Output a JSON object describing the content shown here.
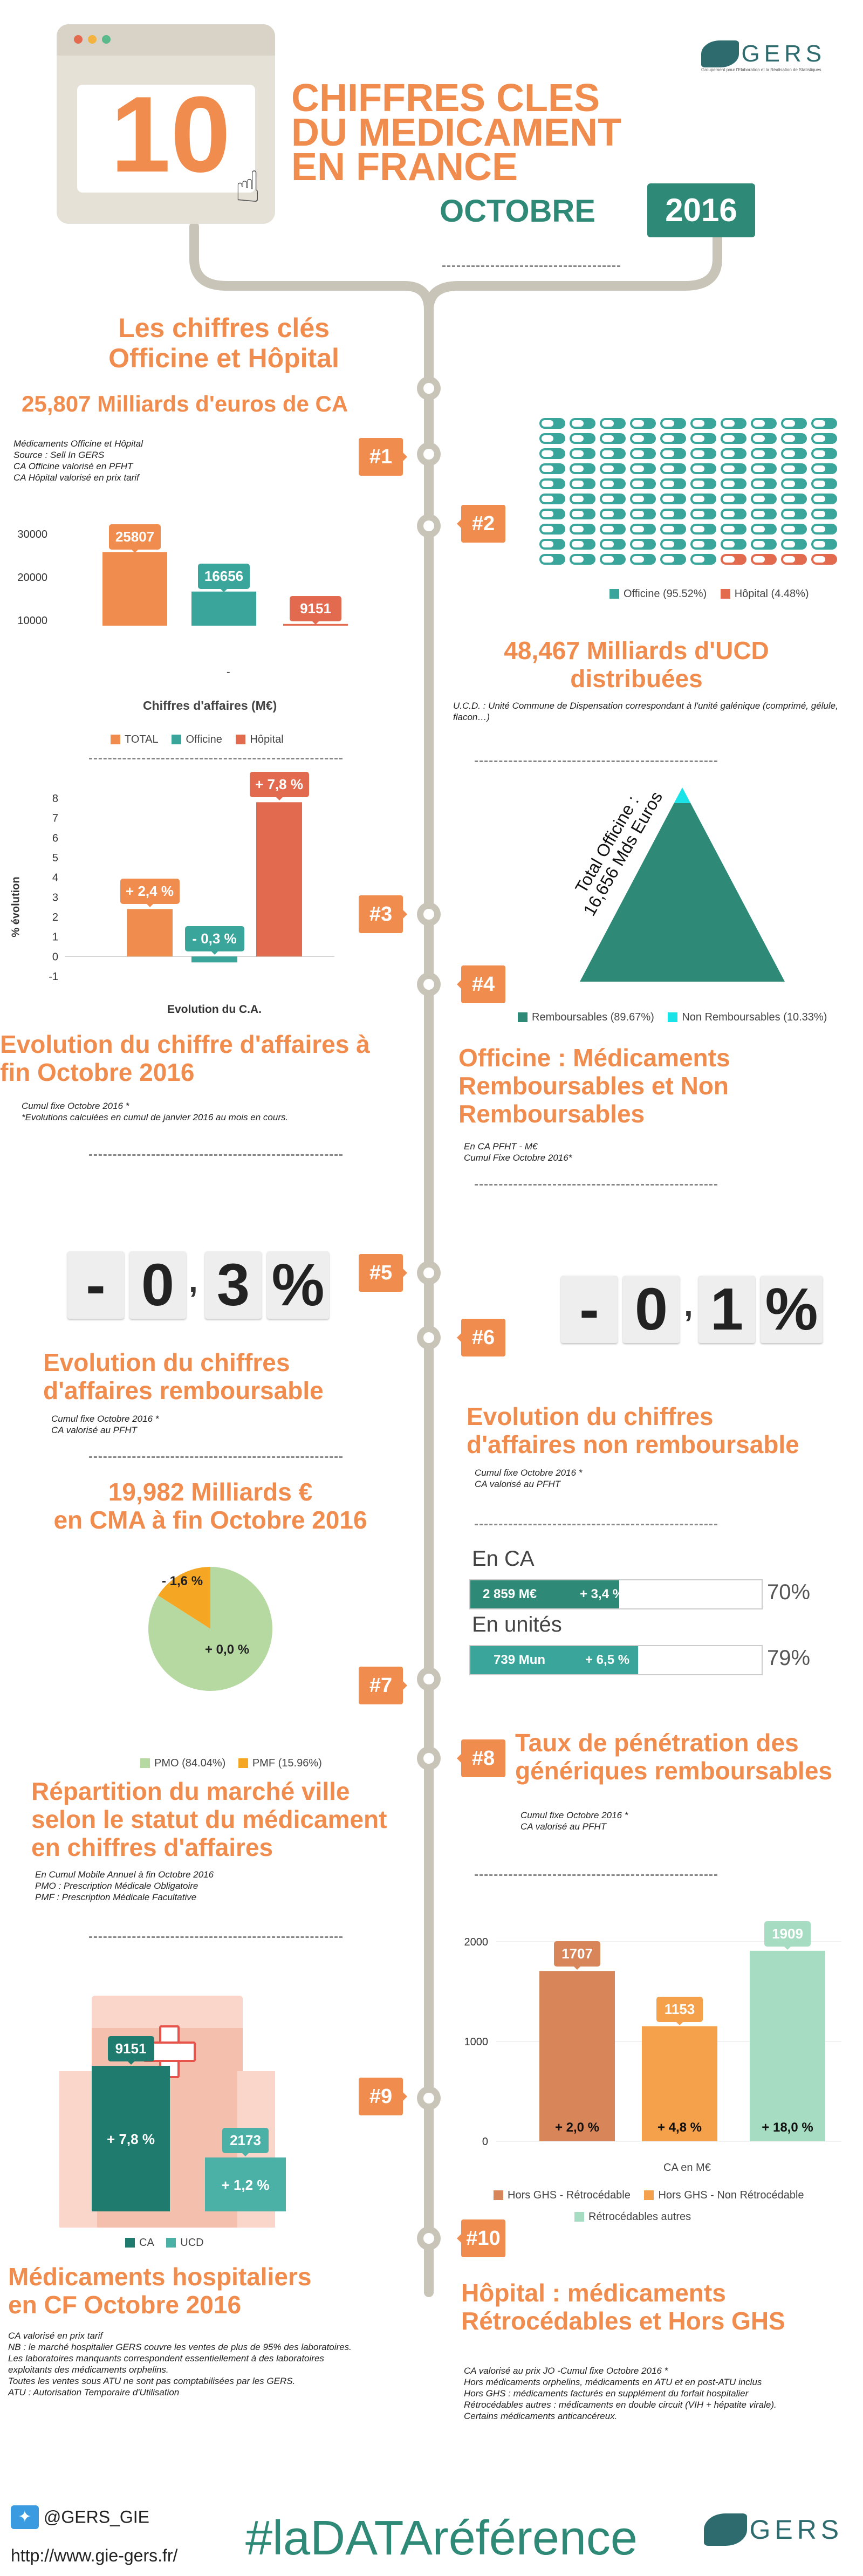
{
  "header": {
    "big_number": "10",
    "title_lines": [
      "CHIFFRES CLES",
      "DU MEDICAMENT",
      "EN FRANCE"
    ],
    "month": "OCTOBRE",
    "year": "2016",
    "logo_text": "GERS",
    "logo_subtitle": "Groupement pour l'Elaboration et la Réalisation de Statistiques",
    "colors": {
      "orange": "#f08c4e",
      "green": "#2e8a77",
      "red": "#e26a4f",
      "teal": "#3aa59a"
    }
  },
  "s1": {
    "section_title": "Les chiffres clés\nOfficine et Hôpital",
    "subtitle": "25,807 Milliards d'euros de CA",
    "notes": "Médicaments Officine et Hôpital\nSource : Sell In GERS\nCA Officine valorisé en PFHT\nCA Hôpital valorisé en prix tarif",
    "badge": "#1",
    "xlabel": "Chiffres d'affaires (M€)",
    "x_tick": "-",
    "legend": [
      "TOTAL",
      "Officine",
      "Hôpital"
    ]
  },
  "s2": {
    "badge": "#2",
    "legend": [
      "Officine (95.52%)",
      "Hôpital (4.48%)"
    ],
    "title": "48,467 Milliards d'UCD\ndistribuées",
    "note": "U.C.D. : Unité Commune de Dispensation correspondant à l'unité galénique (comprimé, gélule, flacon…)"
  },
  "s3": {
    "badge": "#3",
    "ylabel": "% évolution",
    "xlabel": "Evolution du C.A.",
    "title": "Evolution du chiffre d'affaires à\nfin Octobre 2016",
    "notes": "Cumul fixe Octobre 2016 *\n*Evolutions calculées en cumul de janvier 2016 au mois en cours."
  },
  "s4": {
    "badge": "#4",
    "pyramid_label": "Total Officine :\n16,656 Mds Euros",
    "legend": [
      "Remboursables (89.67%)",
      "Non Remboursables (10.33%)"
    ],
    "title": "Officine : Médicaments\nRemboursables et Non\nRemboursables",
    "notes": "En CA PFHT - M€\nCumul Fixe Octobre 2016*"
  },
  "s5": {
    "badge": "#5",
    "digits": [
      "-",
      "0",
      ",",
      "3",
      "%"
    ],
    "title": "Evolution du chiffres\nd'affaires remboursable",
    "notes": "Cumul fixe Octobre 2016 *\nCA valorisé au PFHT"
  },
  "s6": {
    "badge": "#6",
    "digits": [
      "-",
      "0",
      ",",
      "1",
      "%"
    ],
    "title": "Evolution du chiffres\nd'affaires non remboursable",
    "notes": "Cumul fixe Octobre 2016 *\nCA valorisé au PFHT"
  },
  "s7": {
    "badge": "#7",
    "title": "19,982 Milliards €\nen CMA à fin Octobre 2016",
    "labels": [
      "- 1,6 %",
      "+ 0,0 %"
    ],
    "legend": [
      "PMO (84.04%)",
      "PMF (15.96%)"
    ],
    "section_title": "Répartition du marché ville\nselon le statut du médicament\nen chiffres d'affaires",
    "notes": "En Cumul Mobile Annuel à fin Octobre  2016\nPMO : Prescription Médicale Obligatoire\nPMF : Prescription Médicale Facultative"
  },
  "s8": {
    "badge": "#8",
    "bars": [
      {
        "label": "En CA",
        "value": "2 859 M€",
        "evol": "+ 3,4 %",
        "pct": 70,
        "pct_label": "70%"
      },
      {
        "label": "En unités",
        "value": "739 Mun",
        "evol": "+ 6,5 %",
        "pct": 79,
        "pct_label": "79%"
      }
    ],
    "title": "Taux de pénétration des\ngénériques remboursables",
    "notes": "Cumul fixe Octobre 2016 *\nCA valorisé au PFHT"
  },
  "s9": {
    "badge": "#9",
    "legend": [
      "CA",
      "UCD"
    ],
    "title": "Médicaments hospitaliers\nen CF  Octobre 2016",
    "notes": "CA valorisé en prix tarif\nNB : le marché hospitalier GERS couvre les ventes de plus de 95% des laboratoires. Les laboratoires manquants correspondent essentiellement à des laboratoires exploitants des médicaments orphelins.\nToutes les ventes sous ATU ne sont pas comptabilisées par les GERS.\nATU : Autorisation Temporaire d'Utilisation"
  },
  "s10": {
    "badge": "#10",
    "xlabel": "CA en M€",
    "legend": [
      "Hors GHS - Rétrocédable",
      "Hors GHS - Non Rétrocédable",
      "Rétrocédables autres"
    ],
    "title": "Hôpital : médicaments\nRétrocédables et Hors GHS",
    "notes": "CA valorisé au prix JO -Cumul fixe Octobre  2016 *\nHors médicaments orphelins, médicaments en ATU et en post-ATU inclus\nHors GHS : médicaments facturés en supplément du forfait hospitalier\nRétrocédables autres : médicaments en double circuit (VIH + hépatite virale).\nCertains médicaments anticancéreux."
  },
  "footer": {
    "twitter": "@GERS_GIE",
    "url": "http://www.gie-gers.fr/",
    "hashtag": "#laDATAréférence",
    "logo_text": "GERS"
  },
  "chart_data": [
    {
      "type": "bar",
      "categories": [
        "TOTAL",
        "Officine",
        "Hôpital"
      ],
      "values": [
        25807,
        16656,
        9151
      ],
      "xlabel": "Chiffres d'affaires (M€)",
      "ylim": [
        0,
        30000
      ],
      "yticks": [
        0,
        10000,
        20000,
        30000
      ],
      "colors": [
        "#f08c4e",
        "#3aa59a",
        "#e26a4f"
      ]
    },
    {
      "type": "waffle",
      "series": [
        {
          "name": "Officine",
          "value": 95.52
        },
        {
          "name": "Hôpital",
          "value": 4.48
        }
      ],
      "colors": [
        "#3aa59a",
        "#e26a4f"
      ]
    },
    {
      "type": "bar",
      "categories": [
        "TOTAL",
        "Officine",
        "Hôpital"
      ],
      "values": [
        2.4,
        -0.3,
        7.8
      ],
      "labels": [
        "+ 2,4 %",
        "- 0,3 %",
        "+ 7,8 %"
      ],
      "xlabel": "Evolution du C.A.",
      "ylabel": "% évolution",
      "ylim": [
        -1,
        8
      ],
      "yticks": [
        -1,
        0,
        1,
        2,
        3,
        4,
        5,
        6,
        7,
        8
      ],
      "colors": [
        "#f08c4e",
        "#3aa59a",
        "#e26a4f"
      ]
    },
    {
      "type": "pyramid",
      "series": [
        {
          "name": "Remboursables",
          "value": 89.67
        },
        {
          "name": "Non Remboursables",
          "value": 10.33
        }
      ],
      "colors": [
        "#2e8a77",
        "#19e3e6"
      ]
    },
    {
      "type": "pie",
      "series": [
        {
          "name": "PMO",
          "value": 84.04
        },
        {
          "name": "PMF",
          "value": 15.96
        }
      ],
      "labels": [
        "+ 0,0 %",
        "- 1,6 %"
      ],
      "colors": [
        "#b5d9a1",
        "#f5a623"
      ]
    },
    {
      "type": "bar",
      "categories": [
        "CA",
        "UCD"
      ],
      "values": [
        9151,
        2173
      ],
      "labels": [
        "+ 7,8 %",
        "+ 1,2 %"
      ],
      "colors": [
        "#1f7b6e",
        "#4bb0a5"
      ]
    },
    {
      "type": "bar",
      "categories": [
        "Hors GHS - Rétrocédable",
        "Hors GHS - Non Rétrocédable",
        "Rétrocédables autres"
      ],
      "values": [
        1707,
        1153,
        1909
      ],
      "labels": [
        "+ 2,0 %",
        "+ 4,8 %",
        "+ 18,0 %"
      ],
      "xlabel": "CA en M€",
      "ylim": [
        0,
        2000
      ],
      "yticks": [
        0,
        1000,
        2000
      ],
      "colors": [
        "#d9855a",
        "#f5a04a",
        "#a6dcc1"
      ]
    }
  ]
}
